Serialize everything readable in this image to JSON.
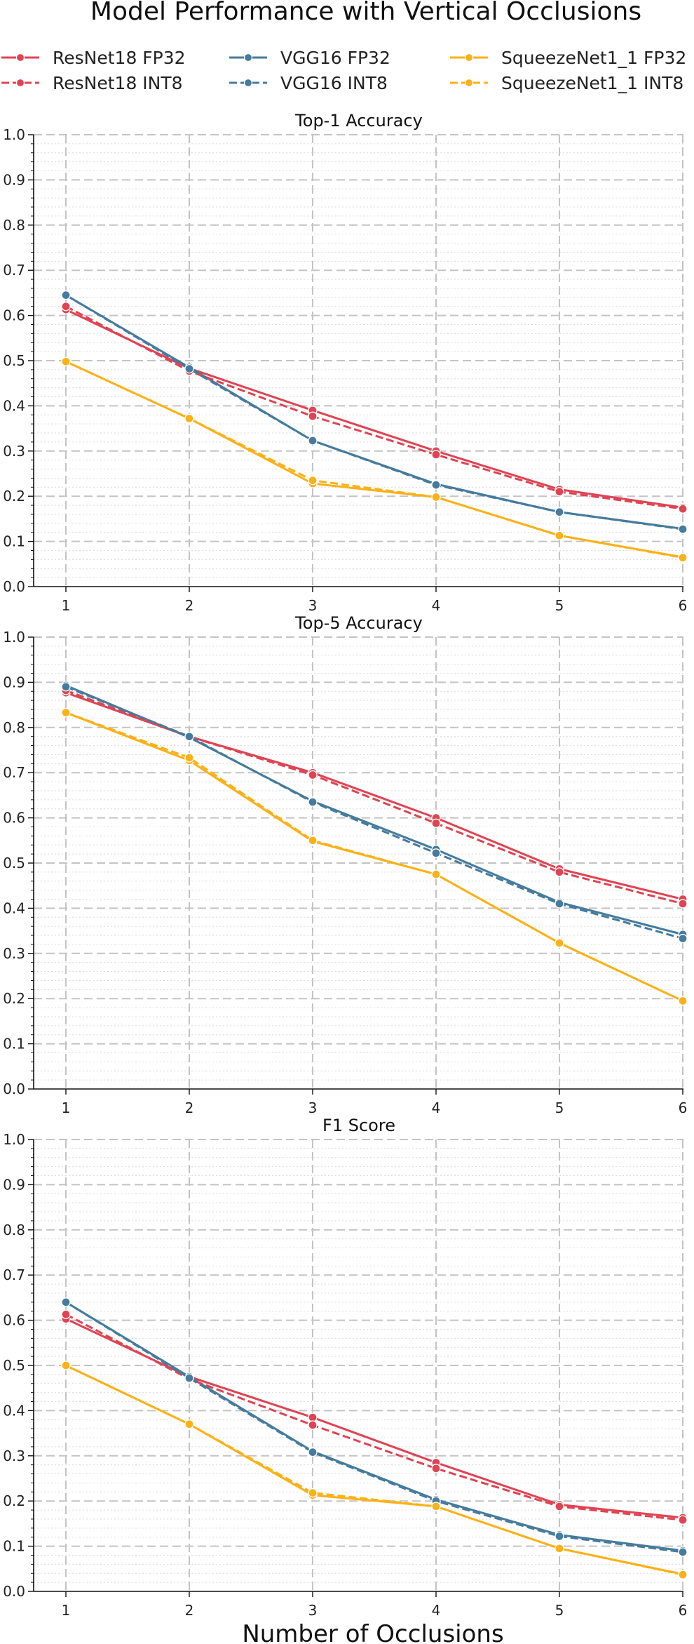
{
  "title": "Model Performance with Vertical Occlusions",
  "xlabel": "Number of Occlusions",
  "legend": {
    "position": "top",
    "entries": [
      {
        "name": "ResNet18 FP32",
        "color": "#e04352",
        "dash": "solid"
      },
      {
        "name": "VGG16 FP32",
        "color": "#457b9d",
        "dash": "solid"
      },
      {
        "name": "SqueezeNet1_1 FP32",
        "color": "#fbb117",
        "dash": "solid"
      },
      {
        "name": "ResNet18 INT8",
        "color": "#e04352",
        "dash": "dashed"
      },
      {
        "name": "VGG16 INT8",
        "color": "#457b9d",
        "dash": "dashed"
      },
      {
        "name": "SqueezeNet1_1 INT8",
        "color": "#fbb117",
        "dash": "dashed"
      }
    ]
  },
  "chart_data": [
    {
      "type": "line",
      "title": "Top-1 Accuracy",
      "x": [
        1,
        2,
        3,
        4,
        5,
        6
      ],
      "ylim": [
        0.0,
        1.0
      ],
      "yticks": [
        "0.0",
        "0.1",
        "0.2",
        "0.3",
        "0.4",
        "0.5",
        "0.6",
        "0.7",
        "0.8",
        "0.9",
        "1.0"
      ],
      "grid": true,
      "series": [
        {
          "name": "ResNet18 FP32",
          "values": [
            0.613,
            0.483,
            0.39,
            0.3,
            0.215,
            0.175
          ]
        },
        {
          "name": "ResNet18 INT8",
          "values": [
            0.62,
            0.477,
            0.377,
            0.292,
            0.21,
            0.172
          ]
        },
        {
          "name": "VGG16 FP32",
          "values": [
            0.645,
            0.485,
            0.323,
            0.227,
            0.165,
            0.128
          ]
        },
        {
          "name": "VGG16 INT8",
          "values": [
            0.645,
            0.482,
            0.323,
            0.225,
            0.165,
            0.127
          ]
        },
        {
          "name": "SqueezeNet1_1 FP32",
          "values": [
            0.498,
            0.372,
            0.228,
            0.198,
            0.113,
            0.065
          ]
        },
        {
          "name": "SqueezeNet1_1 INT8",
          "values": [
            0.498,
            0.372,
            0.235,
            0.198,
            0.113,
            0.064
          ]
        }
      ]
    },
    {
      "type": "line",
      "title": "Top-5 Accuracy",
      "x": [
        1,
        2,
        3,
        4,
        5,
        6
      ],
      "ylim": [
        0.0,
        1.0
      ],
      "yticks": [
        "0.0",
        "0.1",
        "0.2",
        "0.3",
        "0.4",
        "0.5",
        "0.6",
        "0.7",
        "0.8",
        "0.9",
        "1.0"
      ],
      "grid": true,
      "series": [
        {
          "name": "ResNet18 FP32",
          "values": [
            0.877,
            0.78,
            0.7,
            0.6,
            0.487,
            0.42
          ]
        },
        {
          "name": "ResNet18 INT8",
          "values": [
            0.882,
            0.78,
            0.695,
            0.588,
            0.48,
            0.41
          ]
        },
        {
          "name": "VGG16 FP32",
          "values": [
            0.893,
            0.778,
            0.637,
            0.53,
            0.413,
            0.342
          ]
        },
        {
          "name": "VGG16 INT8",
          "values": [
            0.89,
            0.78,
            0.635,
            0.522,
            0.41,
            0.333
          ]
        },
        {
          "name": "SqueezeNet1_1 FP32",
          "values": [
            0.833,
            0.727,
            0.548,
            0.475,
            0.323,
            0.195
          ]
        },
        {
          "name": "SqueezeNet1_1 INT8",
          "values": [
            0.833,
            0.733,
            0.55,
            0.475,
            0.323,
            0.195
          ]
        }
      ]
    },
    {
      "type": "line",
      "title": "F1 Score",
      "x": [
        1,
        2,
        3,
        4,
        5,
        6
      ],
      "ylim": [
        0.0,
        1.0
      ],
      "yticks": [
        "0.0",
        "0.1",
        "0.2",
        "0.3",
        "0.4",
        "0.5",
        "0.6",
        "0.7",
        "0.8",
        "0.9",
        "1.0"
      ],
      "grid": true,
      "series": [
        {
          "name": "ResNet18 FP32",
          "values": [
            0.603,
            0.475,
            0.385,
            0.285,
            0.192,
            0.163
          ]
        },
        {
          "name": "ResNet18 INT8",
          "values": [
            0.613,
            0.47,
            0.368,
            0.272,
            0.188,
            0.158
          ]
        },
        {
          "name": "VGG16 FP32",
          "values": [
            0.64,
            0.475,
            0.31,
            0.203,
            0.125,
            0.09
          ]
        },
        {
          "name": "VGG16 INT8",
          "values": [
            0.64,
            0.472,
            0.308,
            0.2,
            0.122,
            0.087
          ]
        },
        {
          "name": "SqueezeNet1_1 FP32",
          "values": [
            0.5,
            0.37,
            0.213,
            0.188,
            0.095,
            0.038
          ]
        },
        {
          "name": "SqueezeNet1_1 INT8",
          "values": [
            0.5,
            0.37,
            0.218,
            0.188,
            0.095,
            0.037
          ]
        }
      ]
    }
  ]
}
